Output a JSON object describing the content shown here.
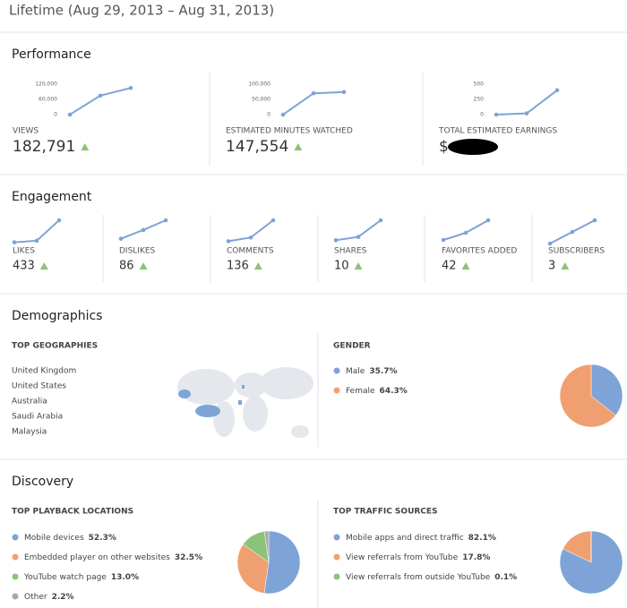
{
  "header": {
    "title": "Lifetime (Aug 29, 2013 – Aug 31, 2013)"
  },
  "performance": {
    "title": "Performance",
    "cards": [
      {
        "label": "VIEWS",
        "value": "182,791",
        "chart": {
          "type": "line",
          "values": [
            0,
            75000,
            105000
          ],
          "ylim": [
            0,
            120000
          ],
          "yticks": [
            0,
            {
              "value": 60000,
              "label": "60,000"
            },
            {
              "value": 120000,
              "label": "120,000"
            }
          ],
          "color": "#7ea3d6"
        }
      },
      {
        "label": "ESTIMATED MINUTES WATCHED",
        "value": "147,554",
        "chart": {
          "type": "line",
          "values": [
            0,
            70000,
            74000
          ],
          "ylim": [
            0,
            100000
          ],
          "yticks": [
            0,
            {
              "value": 50000,
              "label": "50,000"
            },
            {
              "value": 100000,
              "label": "100,000"
            }
          ],
          "color": "#7ea3d6"
        }
      },
      {
        "label": "TOTAL ESTIMATED EARNINGS",
        "value": "$",
        "chart": {
          "type": "line",
          "values": [
            0,
            20,
            400
          ],
          "ylim": [
            0,
            500
          ],
          "yticks": [
            0,
            250,
            500
          ],
          "color": "#7ea3d6"
        }
      }
    ]
  },
  "engagement": {
    "title": "Engagement",
    "cards": [
      {
        "label": "LIKES",
        "value": "433",
        "chart": {
          "type": "line",
          "values": [
            20,
            45,
            368
          ],
          "ylim": [
            0,
            368
          ],
          "color": "#7ea3d6"
        }
      },
      {
        "label": "DISLIKES",
        "value": "86",
        "chart": {
          "type": "line",
          "values": [
            10,
            28,
            48
          ],
          "ylim": [
            0,
            48
          ],
          "color": "#7ea3d6"
        }
      },
      {
        "label": "COMMENTS",
        "value": "136",
        "chart": {
          "type": "line",
          "values": [
            10,
            26,
            100
          ],
          "ylim": [
            0,
            100
          ],
          "color": "#7ea3d6"
        }
      },
      {
        "label": "SHARES",
        "value": "10",
        "chart": {
          "type": "line",
          "values": [
            1,
            2,
            7
          ],
          "ylim": [
            0,
            7
          ],
          "color": "#7ea3d6"
        }
      },
      {
        "label": "FAVORITES ADDED",
        "value": "42",
        "chart": {
          "type": "line",
          "values": [
            4,
            12,
            26
          ],
          "ylim": [
            0,
            26
          ],
          "color": "#7ea3d6"
        }
      },
      {
        "label": "SUBSCRIBERS",
        "value": "3",
        "chart": {
          "type": "line",
          "values": [
            0,
            1,
            2
          ],
          "ylim": [
            0,
            2
          ],
          "color": "#7ea3d6"
        }
      }
    ]
  },
  "demographics": {
    "title": "Demographics",
    "geographies": {
      "title": "TOP GEOGRAPHIES",
      "items": [
        "United Kingdom",
        "United States",
        "Australia",
        "Saudi Arabia",
        "Malaysia"
      ]
    },
    "gender": {
      "title": "GENDER",
      "chart": {
        "type": "pie",
        "categories": [
          "Male",
          "Female"
        ],
        "values": [
          35.7,
          64.3
        ],
        "value_labels": [
          "35.7%",
          "64.3%"
        ],
        "colors": [
          "#7ea3d6",
          "#f0a070"
        ]
      }
    }
  },
  "discovery": {
    "title": "Discovery",
    "playback": {
      "title": "TOP PLAYBACK LOCATIONS",
      "chart": {
        "type": "pie",
        "categories": [
          "Mobile devices",
          "Embedded player on other websites",
          "YouTube watch page",
          "Other"
        ],
        "values": [
          52.3,
          32.5,
          13.0,
          2.2
        ],
        "value_labels": [
          "52.3%",
          "32.5%",
          "13.0%",
          "2.2%"
        ],
        "colors": [
          "#7ea3d6",
          "#f0a070",
          "#8cc37b",
          "#aaaaaa"
        ]
      }
    },
    "traffic": {
      "title": "TOP TRAFFIC SOURCES",
      "chart": {
        "type": "pie",
        "categories": [
          "Mobile apps and direct traffic",
          "View referrals from YouTube",
          "View referrals from outside YouTube"
        ],
        "values": [
          82.1,
          17.8,
          0.1
        ],
        "value_labels": [
          "82.1%",
          "17.8%",
          "0.1%"
        ],
        "colors": [
          "#7ea3d6",
          "#f0a070",
          "#8cc37b"
        ]
      }
    }
  }
}
